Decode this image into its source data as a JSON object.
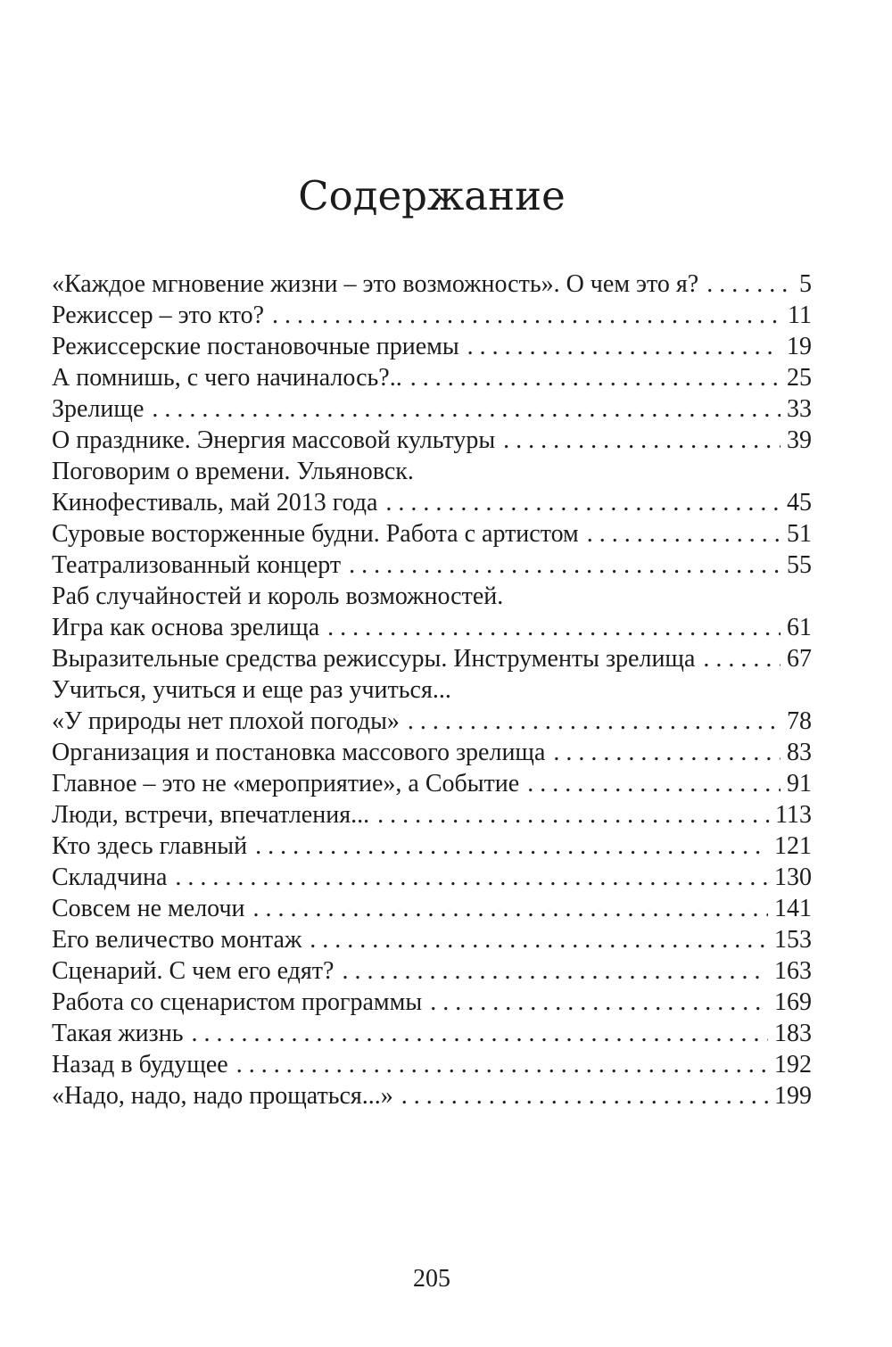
{
  "page": {
    "title": "Содержание",
    "footer_page_number": "205"
  },
  "colors": {
    "text": "#1c1c1c",
    "background": "#ffffff"
  },
  "toc": {
    "entries": [
      {
        "title": "«Каждое мгновение жизни – это возможность». О чем это я?",
        "page": "5"
      },
      {
        "title": "Режиссер – это кто?",
        "page": "11"
      },
      {
        "title": "Режиссерские постановочные приемы",
        "page": "19"
      },
      {
        "title": "А помнишь, с чего начиналось?..",
        "page": "25"
      },
      {
        "title": "Зрелище",
        "page": "33"
      },
      {
        "title": "О празднике. Энергия массовой культуры",
        "page": "39"
      },
      {
        "title": "Поговорим о времени. Ульяновск.",
        "page": null
      },
      {
        "title": "Кинофестиваль, май 2013 года",
        "page": "45"
      },
      {
        "title": "Суровые восторженные будни. Работа с артистом",
        "page": "51"
      },
      {
        "title": "Театрализованный концерт",
        "page": "55"
      },
      {
        "title": "Раб случайностей и король возможностей.",
        "page": null
      },
      {
        "title": "Игра как основа зрелища",
        "page": "61"
      },
      {
        "title": "Выразительные средства режиссуры. Инструменты зрелища",
        "page": "67"
      },
      {
        "title": "Учиться, учиться и еще раз учиться...",
        "page": null
      },
      {
        "title": "«У природы нет плохой погоды»",
        "page": "78"
      },
      {
        "title": "Организация и постановка массового зрелища",
        "page": "83"
      },
      {
        "title": "Главное – это не «мероприятие», а Событие",
        "page": "91"
      },
      {
        "title": "Люди, встречи, впечатления...",
        "page": "113"
      },
      {
        "title": "Кто здесь главный",
        "page": "121"
      },
      {
        "title": "Складчина",
        "page": "130"
      },
      {
        "title": "Совсем не мелочи",
        "page": "141"
      },
      {
        "title": "Его величество монтаж",
        "page": "153"
      },
      {
        "title": "Сценарий. С чем его едят?",
        "page": "163"
      },
      {
        "title": "Работа со сценаристом программы",
        "page": "169"
      },
      {
        "title": "Такая жизнь",
        "page": "183"
      },
      {
        "title": "Назад в будущее",
        "page": "192"
      },
      {
        "title": "«Надо, надо, надо прощаться...»",
        "page": "199"
      }
    ]
  }
}
